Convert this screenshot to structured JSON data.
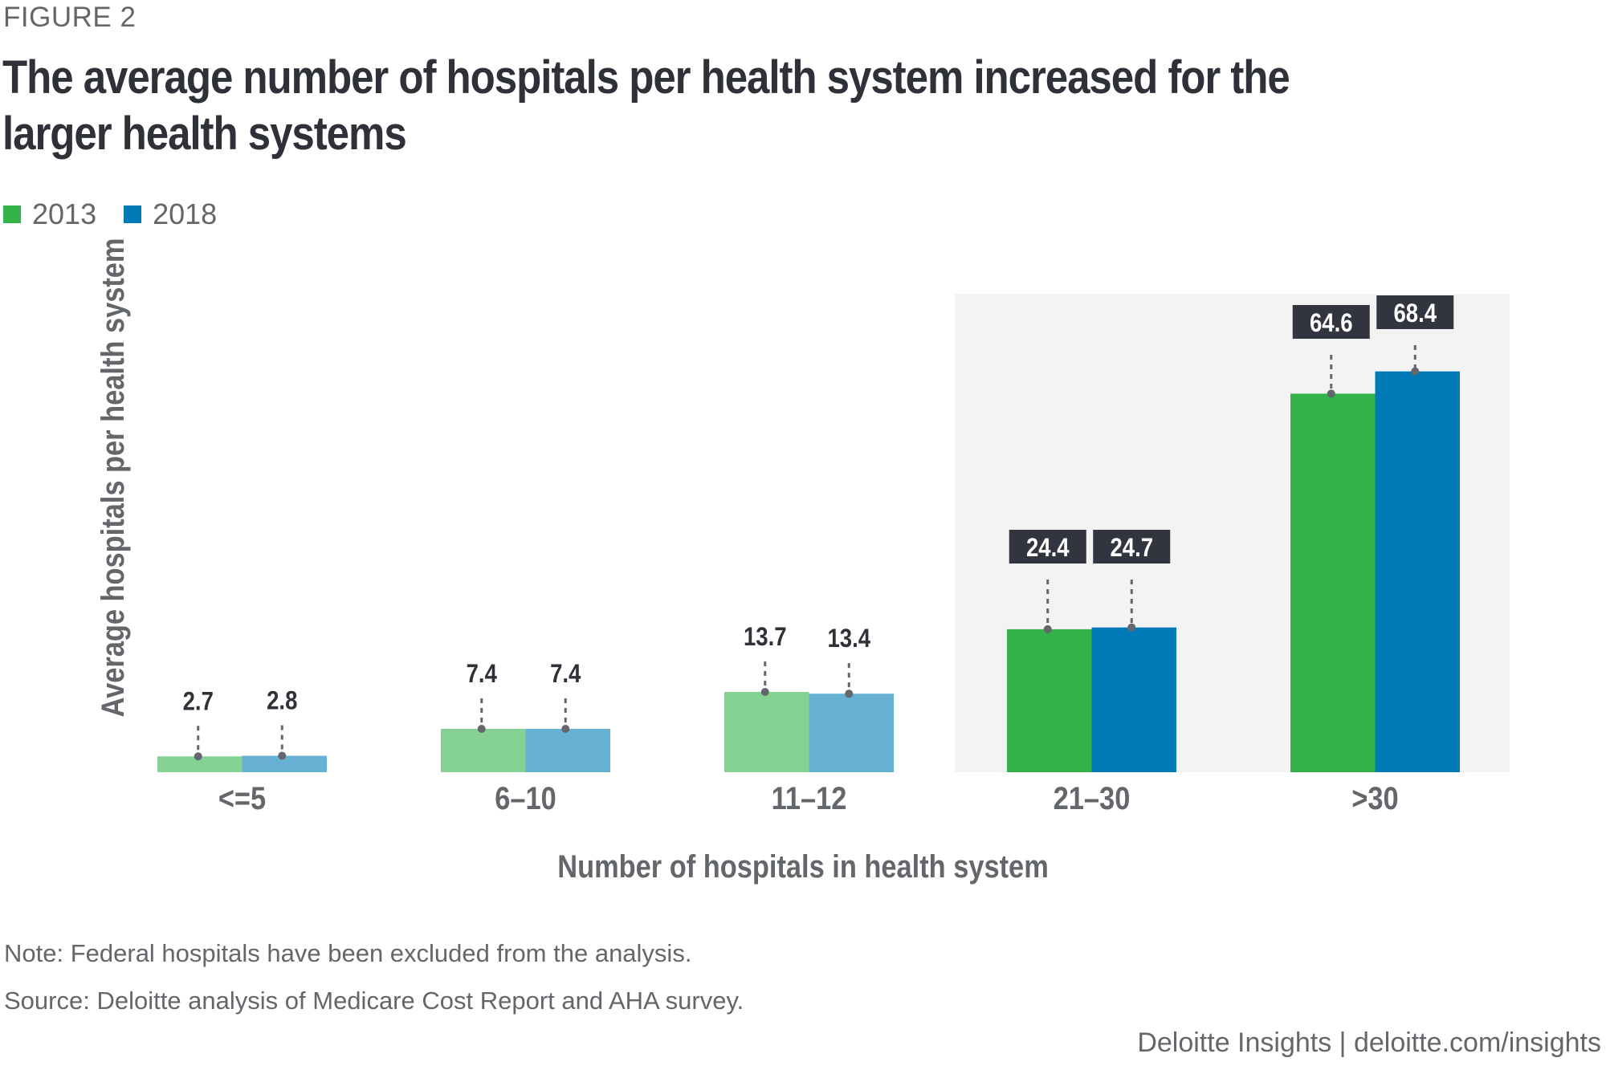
{
  "figure_label": "FIGURE 2",
  "title": "The average number of hospitals per health system increased for the larger health systems",
  "legend": [
    {
      "label": "2013",
      "color": "#33b34a"
    },
    {
      "label": "2018",
      "color": "#0079b7"
    }
  ],
  "notes": {
    "note": "Note: Federal hospitals have been excluded from the analysis.",
    "source": "Source: Deloitte analysis of Medicare Cost Report and AHA survey."
  },
  "footer": "Deloitte Insights | deloitte.com/insights",
  "chart_data": {
    "type": "bar",
    "title": "The average number of hospitals per health system increased for the larger health systems",
    "xlabel": "Number of hospitals in health system",
    "ylabel": "Average hospitals per health system",
    "categories": [
      "<=5",
      "6–10",
      "11–12",
      "21–30",
      ">30"
    ],
    "series": [
      {
        "name": "2013",
        "values": [
          2.7,
          7.4,
          13.7,
          24.4,
          64.6
        ]
      },
      {
        "name": "2018",
        "values": [
          2.8,
          7.4,
          13.4,
          24.7,
          68.4
        ]
      }
    ],
    "highlighted_categories": [
      "21–30",
      ">30"
    ],
    "colors": {
      "2013": "#33b34a",
      "2018": "#0079b7",
      "2013_muted": "#84d193",
      "2018_muted": "#66b0d4",
      "highlight_bg": "#f3f3f3",
      "label_box": "#323440"
    },
    "ylim": [
      0,
      68.4
    ],
    "grid": false,
    "legend_position": "top-left"
  }
}
